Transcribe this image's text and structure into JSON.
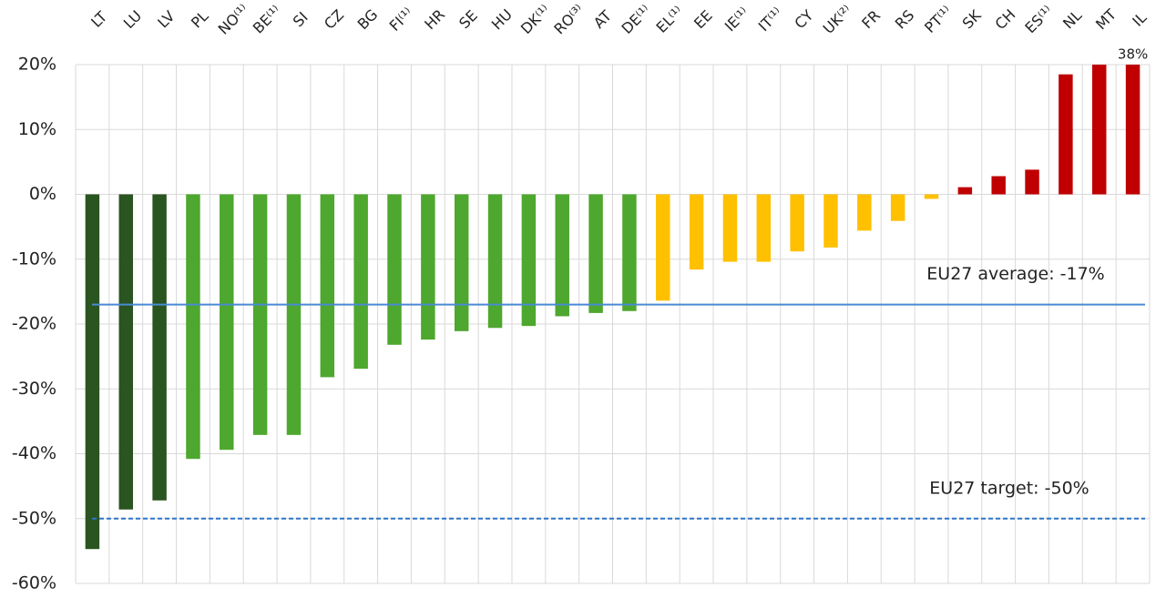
{
  "chart_data": {
    "type": "bar",
    "categories": [
      "LT",
      "LU",
      "LV",
      "PL",
      "NO⁽¹⁾",
      "BE⁽¹⁾",
      "SI",
      "CZ",
      "BG",
      "FI⁽¹⁾",
      "HR",
      "SE",
      "HU",
      "DK⁽¹⁾",
      "RO⁽³⁾",
      "AT",
      "DE⁽¹⁾",
      "EL⁽¹⁾",
      "EE",
      "IE⁽¹⁾",
      "IT⁽¹⁾",
      "CY",
      "UK⁽²⁾",
      "FR",
      "RS",
      "PT⁽¹⁾",
      "SK",
      "CH",
      "ES⁽¹⁾",
      "NL",
      "MT",
      "IL"
    ],
    "values": [
      -54.7,
      -48.6,
      -47.2,
      -40.8,
      -39.4,
      -37.1,
      -37.1,
      -28.2,
      -26.9,
      -23.2,
      -22.4,
      -21.1,
      -20.6,
      -20.3,
      -18.8,
      -18.3,
      -18.0,
      -16.4,
      -11.6,
      -10.4,
      -10.4,
      -8.8,
      -8.2,
      -5.6,
      -4.1,
      -0.7,
      1.1,
      2.8,
      3.8,
      18.5,
      20,
      38
    ],
    "value_labels": [
      null,
      null,
      null,
      null,
      null,
      null,
      null,
      null,
      null,
      null,
      null,
      null,
      null,
      null,
      null,
      null,
      null,
      null,
      null,
      null,
      null,
      null,
      null,
      null,
      null,
      null,
      null,
      null,
      null,
      null,
      null,
      "38%"
    ],
    "colors": [
      "#2a5420",
      "#2a5420",
      "#2a5420",
      "#4ea72e",
      "#4ea72e",
      "#4ea72e",
      "#4ea72e",
      "#4ea72e",
      "#4ea72e",
      "#4ea72e",
      "#4ea72e",
      "#4ea72e",
      "#4ea72e",
      "#4ea72e",
      "#4ea72e",
      "#4ea72e",
      "#4ea72e",
      "#ffc000",
      "#ffc000",
      "#ffc000",
      "#ffc000",
      "#ffc000",
      "#ffc000",
      "#ffc000",
      "#ffc000",
      "#ffc000",
      "#c00000",
      "#c00000",
      "#c00000",
      "#c00000",
      "#c00000",
      "#c00000"
    ],
    "ylim": [
      -60,
      20
    ],
    "yticks": [
      {
        "value": -60,
        "label": "-60%"
      },
      {
        "value": -50,
        "label": "-50%"
      },
      {
        "value": -40,
        "label": "-40%"
      },
      {
        "value": -30,
        "label": "-30%"
      },
      {
        "value": -20,
        "label": "-20%"
      },
      {
        "value": -10,
        "label": "-10%"
      },
      {
        "value": 0,
        "label": "0%"
      },
      {
        "value": 10,
        "label": "10%"
      },
      {
        "value": 20,
        "label": "20%"
      }
    ],
    "grid": true,
    "reference_lines": [
      {
        "value": -17,
        "label": "EU27 average: -17%",
        "color": "#4a8ad4",
        "dashed": false
      },
      {
        "value": -50,
        "label": "EU27 target: -50%",
        "color": "#2e75c8",
        "dashed": true
      }
    ]
  }
}
